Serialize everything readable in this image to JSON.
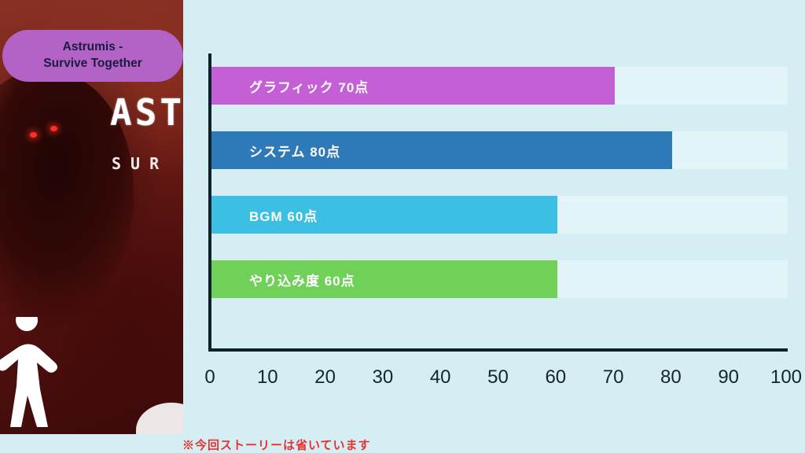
{
  "badge": {
    "line1": "Astrumis -",
    "line2": "Survive Together"
  },
  "game_art": {
    "logo_text": "AST",
    "logo_subtext": "SUR"
  },
  "chart_data": {
    "type": "bar",
    "orientation": "horizontal",
    "title": "",
    "xlabel": "",
    "ylabel": "",
    "categories": [
      "グラフィック",
      "システム",
      "BGM",
      "やり込み度"
    ],
    "values": [
      70,
      80,
      60,
      60
    ],
    "bar_labels": [
      "グラフィック 70点",
      "システム 80点",
      "BGM  60点",
      "やり込み度 60点"
    ],
    "bar_colors": [
      "#c55fd5",
      "#2e79b8",
      "#3bbfe3",
      "#70d159"
    ],
    "track_color": "#e4f5f9",
    "xlim": [
      0,
      100
    ],
    "x_ticks": [
      0,
      10,
      20,
      30,
      40,
      50,
      60,
      70,
      80,
      90,
      100
    ],
    "grid": false,
    "legend": false,
    "axis_color": "#0e2029"
  },
  "note": {
    "text": "※今回ストーリーは省いています"
  }
}
